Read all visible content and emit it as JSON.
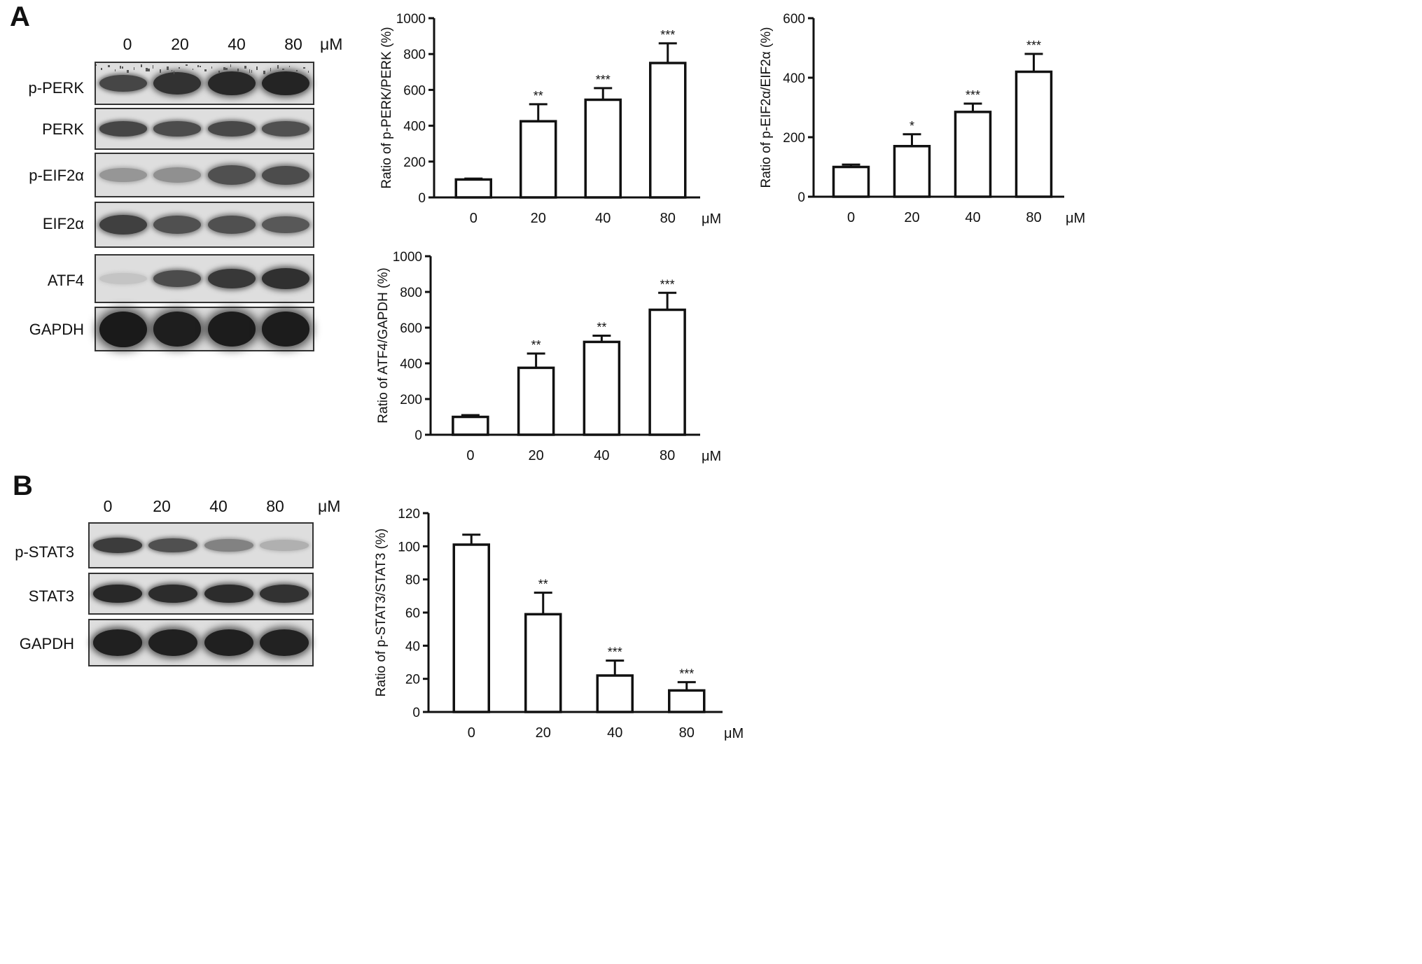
{
  "panelA": {
    "letter": "A",
    "lanes": [
      "0",
      "20",
      "40",
      "80"
    ],
    "unit": "μM",
    "blots": [
      {
        "label": "p-PERK",
        "intensity": [
          0.75,
          0.85,
          0.9,
          0.92
        ],
        "height": [
          0.42,
          0.55,
          0.6,
          0.6
        ],
        "noise": true
      },
      {
        "label": "PERK",
        "intensity": [
          0.75,
          0.72,
          0.74,
          0.7
        ],
        "height": [
          0.38,
          0.38,
          0.4,
          0.38
        ]
      },
      {
        "label": "p-EIF2α",
        "intensity": [
          0.35,
          0.38,
          0.7,
          0.72
        ],
        "height": [
          0.34,
          0.36,
          0.46,
          0.45
        ]
      },
      {
        "label": "EIF2α",
        "intensity": [
          0.78,
          0.7,
          0.7,
          0.66
        ],
        "height": [
          0.45,
          0.42,
          0.42,
          0.4
        ]
      },
      {
        "label": "ATF4",
        "intensity": [
          0.12,
          0.72,
          0.82,
          0.86
        ],
        "height": [
          0.25,
          0.36,
          0.42,
          0.45
        ]
      },
      {
        "label": "GAPDH",
        "intensity": [
          0.97,
          0.95,
          0.96,
          0.96
        ],
        "height": [
          0.85,
          0.82,
          0.82,
          0.82
        ]
      }
    ]
  },
  "panelB": {
    "letter": "B",
    "lanes": [
      "0",
      "20",
      "40",
      "80"
    ],
    "unit": "μM",
    "blots": [
      {
        "label": "p-STAT3",
        "intensity": [
          0.8,
          0.7,
          0.45,
          0.22
        ],
        "height": [
          0.35,
          0.33,
          0.3,
          0.25
        ]
      },
      {
        "label": "STAT3",
        "intensity": [
          0.9,
          0.88,
          0.88,
          0.85
        ],
        "height": [
          0.48,
          0.48,
          0.48,
          0.46
        ]
      },
      {
        "label": "GAPDH",
        "intensity": [
          0.94,
          0.94,
          0.94,
          0.93
        ],
        "height": [
          0.58,
          0.6,
          0.6,
          0.6
        ]
      }
    ]
  },
  "chart_data": [
    {
      "type": "bar",
      "ylabel": "Ratio of p-PERK/PERK (%)",
      "categories": [
        "0",
        "20",
        "40",
        "80"
      ],
      "unit": "μM",
      "values": [
        100,
        425,
        545,
        750
      ],
      "errors": [
        5,
        95,
        65,
        110
      ],
      "significance": [
        "",
        "**",
        "***",
        "***"
      ],
      "ylim": [
        0,
        1000
      ],
      "yticks": [
        0,
        200,
        400,
        600,
        800,
        1000
      ]
    },
    {
      "type": "bar",
      "ylabel": "Ratio of p-EIF2α/EIF2α (%)",
      "categories": [
        "0",
        "20",
        "40",
        "80"
      ],
      "unit": "μM",
      "values": [
        100,
        170,
        285,
        420
      ],
      "errors": [
        8,
        40,
        28,
        60
      ],
      "significance": [
        "",
        "*",
        "***",
        "***"
      ],
      "ylim": [
        0,
        600
      ],
      "yticks": [
        0,
        200,
        400,
        600
      ]
    },
    {
      "type": "bar",
      "ylabel": "Ratio of ATF4/GAPDH (%)",
      "categories": [
        "0",
        "20",
        "40",
        "80"
      ],
      "unit": "μM",
      "values": [
        100,
        375,
        520,
        700
      ],
      "errors": [
        10,
        80,
        35,
        95
      ],
      "significance": [
        "",
        "**",
        "**",
        "***"
      ],
      "ylim": [
        0,
        1000
      ],
      "yticks": [
        0,
        200,
        400,
        600,
        800,
        1000
      ]
    },
    {
      "type": "bar",
      "ylabel": "Ratio of p-STAT3/STAT3 (%)",
      "categories": [
        "0",
        "20",
        "40",
        "80"
      ],
      "unit": "μM",
      "values": [
        101,
        59,
        22,
        13
      ],
      "errors": [
        6,
        13,
        9,
        5
      ],
      "significance": [
        "",
        "**",
        "***",
        "***"
      ],
      "ylim": [
        0,
        120
      ],
      "yticks": [
        0,
        20,
        40,
        60,
        80,
        100,
        120
      ]
    }
  ]
}
